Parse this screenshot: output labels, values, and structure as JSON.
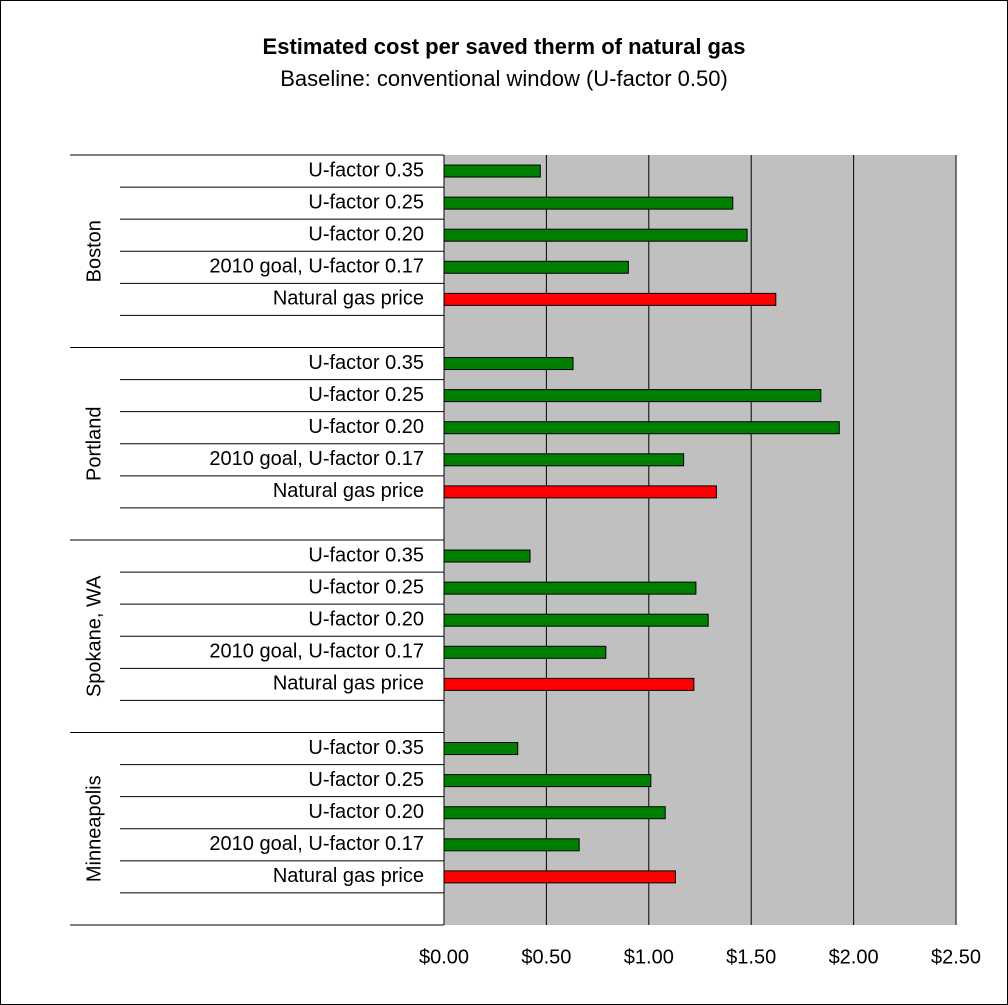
{
  "chart_data": {
    "type": "bar",
    "orientation": "horizontal",
    "title": "Estimated cost per saved therm of natural gas",
    "subtitle": "Baseline: conventional window (U-factor 0.50)",
    "bar_colors": [
      "#008000",
      "#008000",
      "#008000",
      "#008000",
      "#ff0000"
    ],
    "plot_background": "#c0c0c0",
    "grid": true,
    "xlim": [
      0,
      2.5
    ],
    "xticks": [
      {
        "value": 0,
        "label": "$0.00"
      },
      {
        "value": 0.5,
        "label": "$0.50"
      },
      {
        "value": 1,
        "label": "$1.00"
      },
      {
        "value": 1.5,
        "label": "$1.50"
      },
      {
        "value": 2,
        "label": "$2.00"
      },
      {
        "value": 2.5,
        "label": "$2.50"
      }
    ],
    "groups": [
      {
        "name": "Boston",
        "categories": [
          "U-factor 0.35",
          "U-factor 0.25",
          "U-factor 0.20",
          "2010 goal, U-factor 0.17",
          "Natural gas price"
        ],
        "values": [
          0.47,
          1.41,
          1.48,
          0.9,
          1.62
        ]
      },
      {
        "name": "Portland",
        "categories": [
          "U-factor 0.35",
          "U-factor 0.25",
          "U-factor 0.20",
          "2010 goal, U-factor 0.17",
          "Natural gas price"
        ],
        "values": [
          0.63,
          1.84,
          1.93,
          1.17,
          1.33
        ]
      },
      {
        "name": "Spokane, WA",
        "categories": [
          "U-factor 0.35",
          "U-factor 0.25",
          "U-factor 0.20",
          "2010 goal, U-factor 0.17",
          "Natural gas price"
        ],
        "values": [
          0.42,
          1.23,
          1.29,
          0.79,
          1.22
        ]
      },
      {
        "name": "Minneapolis",
        "categories": [
          "U-factor 0.35",
          "U-factor 0.25",
          "U-factor 0.20",
          "2010 goal, U-factor 0.17",
          "Natural gas price"
        ],
        "values": [
          0.36,
          1.01,
          1.08,
          0.66,
          1.13
        ]
      }
    ]
  }
}
